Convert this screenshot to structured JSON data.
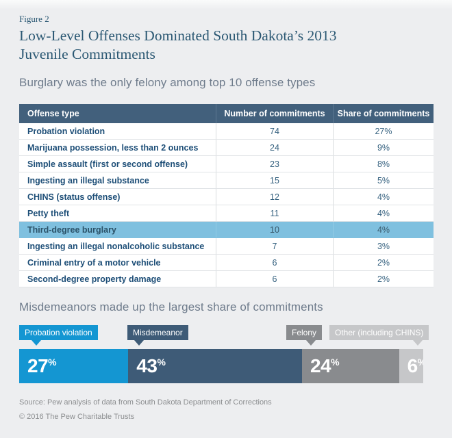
{
  "figure_label": "Figure 2",
  "title": "Low-Level Offenses Dominated South Dakota’s 2013 Juvenile Commitments",
  "table_subtitle": "Burglary was the only felony among top 10 offense types",
  "bar_subtitle": "Misdemeanors made up the largest share of commitments",
  "source": "Source: Pew analysis of data from South Dakota Department of Corrections",
  "copyright": "© 2016 The Pew Charitable Trusts",
  "colors": {
    "background": "#edeef0",
    "title_blue": "#2b5873",
    "subtitle_gray": "#6f7c8c",
    "table_header_bg": "#42607c",
    "offense_text": "#1d4e77",
    "highlight_row_bg": "#7fc0df",
    "accent_blue": "#1496d2",
    "slate_blue": "#3e5b77",
    "gray": "#898b8e",
    "light_gray": "#c6c7c9"
  },
  "chart_data": [
    {
      "type": "table",
      "columns": [
        "Offense type",
        "Number of commitments",
        "Share of commitments"
      ],
      "rows": [
        {
          "offense": "Probation violation",
          "number": "74",
          "share": "27%",
          "highlight": false
        },
        {
          "offense": "Marijuana possession, less than 2 ounces",
          "number": "24",
          "share": "9%",
          "highlight": false
        },
        {
          "offense": "Simple assault (first or second offense)",
          "number": "23",
          "share": "8%",
          "highlight": false
        },
        {
          "offense": "Ingesting an illegal substance",
          "number": "15",
          "share": "5%",
          "highlight": false
        },
        {
          "offense": "CHINS (status offense)",
          "number": "12",
          "share": "4%",
          "highlight": false
        },
        {
          "offense": "Petty theft",
          "number": "11",
          "share": "4%",
          "highlight": false
        },
        {
          "offense": "Third-degree burglary",
          "number": "10",
          "share": "4%",
          "highlight": true
        },
        {
          "offense": "Ingesting an illegal nonalcoholic substance",
          "number": "7",
          "share": "3%",
          "highlight": false
        },
        {
          "offense": "Criminal entry of a motor vehicle",
          "number": "6",
          "share": "2%",
          "highlight": false
        },
        {
          "offense": "Second-degree property damage",
          "number": "6",
          "share": "2%",
          "highlight": false
        }
      ]
    },
    {
      "type": "bar",
      "variant": "horizontal-stacked",
      "title": "Misdemeanors made up the largest share of commitments",
      "categories": [
        "Probation violation",
        "Misdemeanor",
        "Felony",
        "Other (including CHINS)"
      ],
      "values": [
        27,
        43,
        24,
        6
      ],
      "unit": "%",
      "xlim": [
        0,
        100
      ],
      "colors": [
        "#1496d2",
        "#3e5b77",
        "#898b8e",
        "#c6c7c9"
      ],
      "legend_position": "flags-above-bar"
    }
  ]
}
